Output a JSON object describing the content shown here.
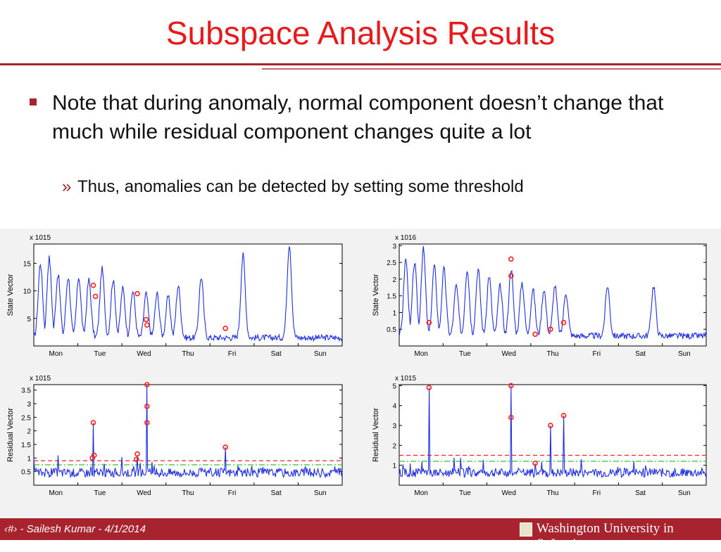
{
  "slide": {
    "title": "Subspace Analysis Results",
    "bullet": "Note that during anomaly, normal component doesn’t change that much while residual component changes quite a lot",
    "sub_bullet_marker": "»",
    "sub_bullet": "Thus, anomalies can be detected by setting some threshold"
  },
  "footer": {
    "left": "‹#› - Sailesh Kumar - 4/1/2014",
    "right": "Washington University in St.Louis"
  },
  "colors": {
    "title": "#e8191b",
    "accent": "#a7232e",
    "series": "#1f2fe0",
    "marker": "#ff2020",
    "threshold_red": "#ff2020",
    "threshold_green": "#2ec82e"
  },
  "chart_data": [
    {
      "type": "line",
      "ylabel": "State Vector",
      "exponent": "x 10^15",
      "categories": [
        "Mon",
        "Tue",
        "Wed",
        "Thu",
        "Fri",
        "Sat",
        "Sun"
      ],
      "yticks": [
        5,
        10,
        15
      ],
      "ylim": [
        0,
        18.5
      ],
      "baseline": 1.5,
      "peaks": [
        {
          "x": 0.15,
          "y": 15
        },
        {
          "x": 0.35,
          "y": 16
        },
        {
          "x": 0.55,
          "y": 13
        },
        {
          "x": 0.78,
          "y": 12.5
        },
        {
          "x": 1.02,
          "y": 12.5
        },
        {
          "x": 1.25,
          "y": 12
        },
        {
          "x": 1.55,
          "y": 14
        },
        {
          "x": 1.8,
          "y": 12
        },
        {
          "x": 2.02,
          "y": 10.5
        },
        {
          "x": 2.25,
          "y": 10
        },
        {
          "x": 2.55,
          "y": 9.5
        },
        {
          "x": 2.8,
          "y": 9.5
        },
        {
          "x": 3.05,
          "y": 9
        },
        {
          "x": 3.28,
          "y": 11
        },
        {
          "x": 3.8,
          "y": 12.5
        },
        {
          "x": 4.75,
          "y": 16.5
        },
        {
          "x": 5.8,
          "y": 18.5
        }
      ],
      "anomalies": [
        {
          "x": 1.35,
          "y": 11
        },
        {
          "x": 1.4,
          "y": 9
        },
        {
          "x": 2.35,
          "y": 9.5
        },
        {
          "x": 2.55,
          "y": 4.8
        },
        {
          "x": 2.57,
          "y": 3.8
        },
        {
          "x": 4.35,
          "y": 3.2
        }
      ]
    },
    {
      "type": "line",
      "ylabel": "State Vector",
      "exponent": "x 10^16",
      "categories": [
        "Mon",
        "Tue",
        "Wed",
        "Thu",
        "Fri",
        "Sat",
        "Sun"
      ],
      "yticks": [
        0.5,
        1,
        1.5,
        2,
        2.5,
        3
      ],
      "ylim": [
        0,
        3.05
      ],
      "baseline": 0.3,
      "peaks": [
        {
          "x": 0.15,
          "y": 2.6
        },
        {
          "x": 0.35,
          "y": 2.5
        },
        {
          "x": 0.55,
          "y": 2.9
        },
        {
          "x": 0.8,
          "y": 2.4
        },
        {
          "x": 1.02,
          "y": 2.3
        },
        {
          "x": 1.3,
          "y": 1.8
        },
        {
          "x": 1.55,
          "y": 2.3
        },
        {
          "x": 1.8,
          "y": 2.3
        },
        {
          "x": 2.05,
          "y": 2.1
        },
        {
          "x": 2.3,
          "y": 1.8
        },
        {
          "x": 2.55,
          "y": 2.3
        },
        {
          "x": 2.8,
          "y": 1.9
        },
        {
          "x": 3.05,
          "y": 1.7
        },
        {
          "x": 3.3,
          "y": 1.7
        },
        {
          "x": 3.55,
          "y": 1.8
        },
        {
          "x": 3.8,
          "y": 1.6
        },
        {
          "x": 4.75,
          "y": 1.8
        },
        {
          "x": 5.8,
          "y": 1.8
        }
      ],
      "anomalies": [
        {
          "x": 0.68,
          "y": 0.7
        },
        {
          "x": 2.55,
          "y": 2.6
        },
        {
          "x": 2.55,
          "y": 2.1
        },
        {
          "x": 3.1,
          "y": 0.35
        },
        {
          "x": 3.45,
          "y": 0.5
        },
        {
          "x": 3.75,
          "y": 0.7
        }
      ]
    },
    {
      "type": "line",
      "ylabel": "Residual Vector",
      "exponent": "x 10^15",
      "categories": [
        "Mon",
        "Tue",
        "Wed",
        "Thu",
        "Fri",
        "Sat",
        "Sun"
      ],
      "yticks": [
        0.5,
        1,
        1.5,
        2,
        2.5,
        3,
        3.5
      ],
      "ylim": [
        0,
        3.7
      ],
      "threshold_red": 0.9,
      "threshold_green": 0.75,
      "spikes": [
        {
          "x": 1.35,
          "y": 2.3
        },
        {
          "x": 2.35,
          "y": 1.1
        },
        {
          "x": 2.57,
          "y": 3.7
        },
        {
          "x": 4.35,
          "y": 1.4
        },
        {
          "x": 0.55,
          "y": 1.1
        }
      ],
      "anomalies": [
        {
          "x": 1.35,
          "y": 2.3
        },
        {
          "x": 1.37,
          "y": 1.1
        },
        {
          "x": 1.33,
          "y": 1.0
        },
        {
          "x": 2.35,
          "y": 1.15
        },
        {
          "x": 2.33,
          "y": 0.95
        },
        {
          "x": 2.57,
          "y": 3.7
        },
        {
          "x": 2.57,
          "y": 2.9
        },
        {
          "x": 2.57,
          "y": 2.3
        },
        {
          "x": 4.35,
          "y": 1.4
        }
      ]
    },
    {
      "type": "line",
      "ylabel": "Residual Vector",
      "exponent": "x 10^15",
      "categories": [
        "Mon",
        "Tue",
        "Wed",
        "Thu",
        "Fri",
        "Sat",
        "Sun"
      ],
      "yticks": [
        1,
        2,
        3,
        4,
        5
      ],
      "ylim": [
        0,
        5.05
      ],
      "threshold_red": 1.5,
      "threshold_green": 1.2,
      "spikes": [
        {
          "x": 0.68,
          "y": 4.9
        },
        {
          "x": 2.55,
          "y": 5.0
        },
        {
          "x": 3.1,
          "y": 1.1
        },
        {
          "x": 3.45,
          "y": 3.0
        },
        {
          "x": 3.75,
          "y": 3.5
        },
        {
          "x": 4.15,
          "y": 1.3
        },
        {
          "x": 5.35,
          "y": 1.2
        }
      ],
      "anomalies": [
        {
          "x": 0.68,
          "y": 4.9
        },
        {
          "x": 2.55,
          "y": 5.0
        },
        {
          "x": 2.55,
          "y": 3.4
        },
        {
          "x": 3.1,
          "y": 1.1
        },
        {
          "x": 3.45,
          "y": 3.0
        },
        {
          "x": 3.75,
          "y": 3.5
        }
      ]
    }
  ]
}
